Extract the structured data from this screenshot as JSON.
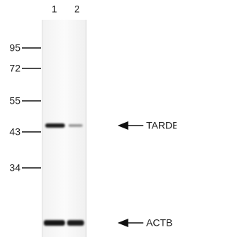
{
  "lanes": [
    "1",
    "2"
  ],
  "markers": [
    95,
    72,
    55,
    43,
    34
  ],
  "bands": [
    "TARDBP",
    "ACTB"
  ]
}
